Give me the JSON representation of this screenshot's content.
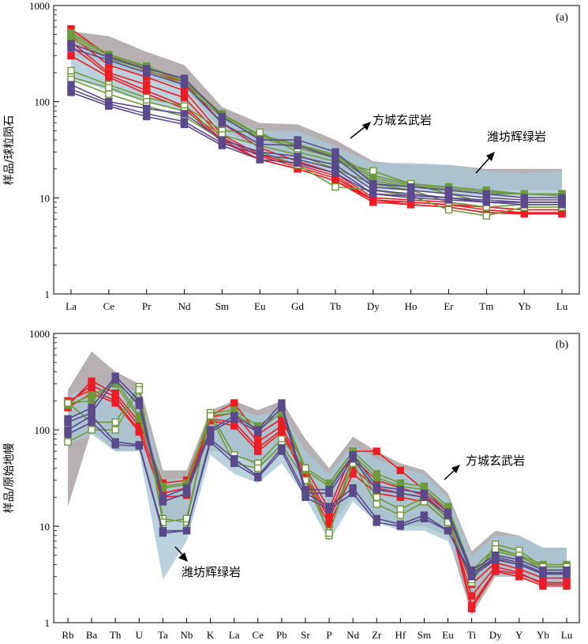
{
  "colors": {
    "red": "#ee1c24",
    "green": "#6f9a3a",
    "purple": "#5a4a8c",
    "field_grey": "#a9a2a6",
    "field_blue": "#a9c7d6"
  },
  "chart_data": [
    {
      "type": "line",
      "panel_label": "(a)",
      "ylabel": "样品/球粒陨石",
      "yscale": "log",
      "ylim": [
        1,
        1000
      ],
      "yticks": [
        "1",
        "10",
        "100",
        "1000"
      ],
      "categories": [
        "La",
        "Ce",
        "Pr",
        "Nd",
        "Sm",
        "Eu",
        "Gd",
        "Tb",
        "Dy",
        "Ho",
        "Er",
        "Tm",
        "Yb",
        "Lu"
      ],
      "annotations": [
        {
          "text": "方城玄武岩",
          "field": "grey"
        },
        {
          "text": "潍坊辉绿岩",
          "field": "blue"
        }
      ],
      "fields": {
        "grey": {
          "upper": [
            540,
            480,
            330,
            240,
            88,
            60,
            58,
            40,
            24,
            22,
            22,
            20,
            20,
            20
          ],
          "lower": [
            300,
            250,
            180,
            140,
            50,
            33,
            26,
            22,
            14,
            13,
            12,
            12,
            12,
            12
          ]
        },
        "blue": {
          "upper": [
            420,
            280,
            210,
            160,
            70,
            50,
            50,
            34,
            23,
            23,
            22,
            19,
            18,
            19
          ],
          "lower": [
            175,
            130,
            100,
            80,
            38,
            27,
            22,
            18,
            12,
            12,
            11,
            10,
            10,
            10
          ]
        }
      },
      "series": [
        {
          "group": "red",
          "hollow": false,
          "values": [
            570,
            300,
            210,
            160,
            60,
            33,
            24,
            18,
            10,
            9.5,
            9,
            8,
            7.5,
            7.5
          ]
        },
        {
          "group": "red",
          "hollow": false,
          "values": [
            480,
            240,
            180,
            130,
            45,
            28,
            22,
            17,
            9.5,
            9,
            8.5,
            7.5,
            7,
            7
          ]
        },
        {
          "group": "red",
          "hollow": false,
          "values": [
            420,
            200,
            150,
            110,
            42,
            27,
            21,
            16,
            9.5,
            8.5,
            8,
            7,
            7,
            7
          ]
        },
        {
          "group": "red",
          "hollow": false,
          "values": [
            380,
            190,
            130,
            90,
            40,
            25,
            20,
            15,
            9,
            8.5,
            8,
            7,
            6.8,
            6.8
          ]
        },
        {
          "group": "red",
          "hollow": false,
          "values": [
            300,
            180,
            120,
            85,
            38,
            25,
            20,
            15,
            9.5,
            9,
            8.5,
            8,
            7.5,
            7.5
          ]
        },
        {
          "group": "green",
          "hollow": false,
          "values": [
            520,
            310,
            235,
            165,
            75,
            45,
            36,
            28,
            17,
            14,
            13,
            12,
            11,
            11
          ]
        },
        {
          "group": "green",
          "hollow": false,
          "values": [
            490,
            300,
            230,
            160,
            72,
            44,
            35,
            27,
            16,
            13.5,
            12.5,
            11.5,
            11,
            11
          ]
        },
        {
          "group": "green",
          "hollow": false,
          "values": [
            460,
            280,
            215,
            150,
            68,
            42,
            33,
            26,
            15,
            13,
            12,
            11,
            11,
            10.5
          ]
        },
        {
          "group": "green",
          "hollow": true,
          "values": [
            210,
            150,
            110,
            90,
            50,
            48,
            30,
            24,
            19,
            14,
            11,
            9,
            9,
            9
          ]
        },
        {
          "group": "green",
          "hollow": true,
          "values": [
            180,
            140,
            100,
            80,
            45,
            35,
            28,
            20,
            14,
            12,
            9,
            8,
            8.5,
            8.5
          ]
        },
        {
          "group": "green",
          "hollow": true,
          "values": [
            170,
            120,
            90,
            70,
            40,
            30,
            22,
            13,
            12,
            10.5,
            7.5,
            6.5,
            8,
            8
          ]
        },
        {
          "group": "purple",
          "hollow": false,
          "values": [
            400,
            290,
            220,
            175,
            70,
            40,
            40,
            30,
            14,
            13,
            12,
            11,
            10,
            10
          ]
        },
        {
          "group": "purple",
          "hollow": false,
          "values": [
            360,
            270,
            200,
            150,
            60,
            36,
            35,
            26,
            13,
            12,
            11,
            10,
            9.5,
            9.5
          ]
        },
        {
          "group": "purple",
          "hollow": false,
          "values": [
            150,
            100,
            85,
            75,
            40,
            30,
            27,
            22,
            12,
            11,
            10,
            9.5,
            9,
            9
          ]
        },
        {
          "group": "purple",
          "hollow": false,
          "values": [
            135,
            95,
            75,
            62,
            37,
            28,
            25,
            20,
            11,
            10.5,
            10,
            9,
            9,
            9
          ]
        },
        {
          "group": "purple",
          "hollow": false,
          "values": [
            125,
            90,
            70,
            58,
            35,
            25,
            23,
            18,
            11,
            10,
            9.5,
            9,
            8.5,
            8.5
          ]
        }
      ]
    },
    {
      "type": "line",
      "panel_label": "(b)",
      "ylabel": "样品/原始地幔",
      "yscale": "log",
      "ylim": [
        1,
        1000
      ],
      "yticks": [
        "1",
        "10",
        "100",
        "1000"
      ],
      "categories": [
        "Rb",
        "Ba",
        "Th",
        "U",
        "Ta",
        "Nb",
        "K",
        "La",
        "Ce",
        "Pb",
        "Sr",
        "P",
        "Nd",
        "Zr",
        "Hf",
        "Sm",
        "Eu",
        "Ti",
        "Dy",
        "Y",
        "Yb",
        "Lu"
      ],
      "annotations": [
        {
          "text": "方城玄武岩",
          "field": "grey"
        },
        {
          "text": "潍坊辉绿岩",
          "field": "blue"
        }
      ],
      "fields": {
        "grey": {
          "upper": [
            260,
            650,
            400,
            300,
            38,
            38,
            160,
            200,
            160,
            200,
            80,
            40,
            85,
            60,
            45,
            38,
            22,
            5.5,
            9,
            8,
            6,
            6
          ],
          "lower": [
            16,
            100,
            60,
            60,
            12,
            12,
            60,
            60,
            40,
            60,
            25,
            10,
            20,
            12,
            10,
            10,
            8,
            1.2,
            3,
            3,
            2.5,
            2.5
          ]
        },
        "blue": {
          "upper": [
            220,
            300,
            280,
            250,
            30,
            32,
            150,
            170,
            140,
            160,
            60,
            35,
            70,
            50,
            40,
            35,
            20,
            5,
            8,
            8,
            6,
            6
          ],
          "lower": [
            70,
            90,
            60,
            60,
            2.8,
            7,
            55,
            35,
            28,
            45,
            20,
            7,
            18,
            11,
            9,
            9,
            7,
            2,
            3,
            3,
            2.5,
            2.5
          ]
        }
      },
      "series": [
        {
          "group": "red",
          "hollow": false,
          "values": [
            180,
            320,
            240,
            120,
            28,
            30,
            140,
            190,
            90,
            130,
            40,
            15,
            60,
            60,
            38,
            24,
            14,
            1.5,
            3.5,
            3.2,
            2.6,
            2.6
          ]
        },
        {
          "group": "red",
          "hollow": false,
          "values": [
            190,
            290,
            220,
            110,
            22,
            25,
            135,
            150,
            75,
            110,
            35,
            13,
            50,
            30,
            25,
            21,
            13,
            1.4,
            3.4,
            3,
            2.4,
            2.4
          ]
        },
        {
          "group": "red",
          "hollow": false,
          "values": [
            200,
            260,
            200,
            100,
            18,
            22,
            130,
            120,
            65,
            100,
            32,
            12,
            40,
            25,
            22,
            20,
            12,
            1.9,
            3.8,
            3.3,
            2.5,
            2.5
          ]
        },
        {
          "group": "red",
          "hollow": false,
          "values": [
            170,
            240,
            190,
            95,
            20,
            21,
            125,
            110,
            60,
            95,
            30,
            10.5,
            35,
            22,
            20,
            18,
            11,
            2.5,
            4.2,
            3.6,
            2.9,
            2.9
          ]
        },
        {
          "group": "green",
          "hollow": false,
          "values": [
            190,
            200,
            330,
            140,
            26,
            28,
            150,
            160,
            110,
            160,
            40,
            28,
            60,
            35,
            28,
            26,
            16,
            3.5,
            6,
            5,
            4,
            4
          ]
        },
        {
          "group": "green",
          "hollow": false,
          "values": [
            180,
            230,
            300,
            130,
            25,
            27,
            140,
            150,
            100,
            150,
            38,
            26,
            55,
            32,
            26,
            24,
            15,
            3.2,
            5.5,
            4.8,
            3.8,
            3.8
          ]
        },
        {
          "group": "green",
          "hollow": true,
          "values": [
            190,
            120,
            120,
            280,
            12,
            11,
            150,
            55,
            45,
            80,
            40,
            8,
            55,
            20,
            15,
            20,
            12,
            2.6,
            6.5,
            5.6,
            3.8,
            3.8
          ]
        },
        {
          "group": "green",
          "hollow": true,
          "values": [
            75,
            100,
            100,
            260,
            11,
            12,
            140,
            45,
            40,
            70,
            30,
            8.5,
            45,
            17,
            13,
            18,
            11,
            2.8,
            5.8,
            5,
            3.5,
            3.5
          ]
        },
        {
          "group": "purple",
          "hollow": false,
          "values": [
            130,
            170,
            360,
            200,
            20,
            25,
            100,
            140,
            100,
            190,
            24,
            24,
            55,
            26,
            24,
            22,
            14,
            3.5,
            5,
            4.5,
            3.5,
            3.5
          ]
        },
        {
          "group": "purple",
          "hollow": false,
          "values": [
            120,
            150,
            330,
            180,
            18,
            22,
            95,
            130,
            95,
            170,
            22,
            22,
            50,
            24,
            22,
            20,
            13,
            3.2,
            4.8,
            4.2,
            3.3,
            3.3
          ]
        },
        {
          "group": "purple",
          "hollow": false,
          "values": [
            100,
            140,
            75,
            70,
            9,
            9,
            80,
            50,
            33,
            65,
            22,
            16,
            25,
            12,
            10.5,
            13,
            9,
            3,
            4.5,
            4,
            3.2,
            3.2
          ]
        },
        {
          "group": "purple",
          "hollow": false,
          "values": [
            90,
            120,
            70,
            68,
            8.5,
            9,
            75,
            45,
            32,
            60,
            20,
            15,
            22,
            11,
            10,
            12,
            9,
            3.2,
            4.6,
            4,
            3.2,
            3.2
          ]
        }
      ]
    }
  ]
}
